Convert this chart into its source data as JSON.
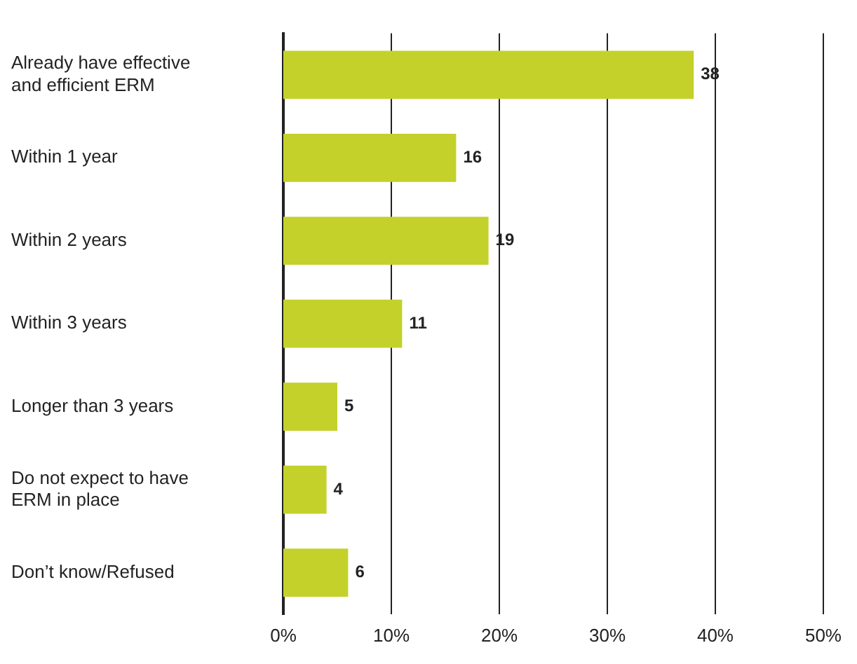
{
  "chart_data": {
    "type": "bar",
    "orientation": "horizontal",
    "categories": [
      "Already have effective and efficient ERM",
      "Within 1 year",
      "Within 2 years",
      "Within 3 years",
      "Longer than 3 years",
      "Do not expect to have ERM in place",
      "Don’t know/Refused"
    ],
    "values": [
      38,
      16,
      19,
      11,
      5,
      4,
      6
    ],
    "color": "#c4d12a",
    "xlim": [
      0,
      50
    ],
    "xticks": [
      {
        "value": 0,
        "label": "0%"
      },
      {
        "value": 10,
        "label": "10%"
      },
      {
        "value": 20,
        "label": "20%"
      },
      {
        "value": 30,
        "label": "30%"
      },
      {
        "value": 40,
        "label": "40%"
      },
      {
        "value": 50,
        "label": "50%"
      }
    ],
    "grid": "x",
    "data_labels": true,
    "legend": false
  }
}
